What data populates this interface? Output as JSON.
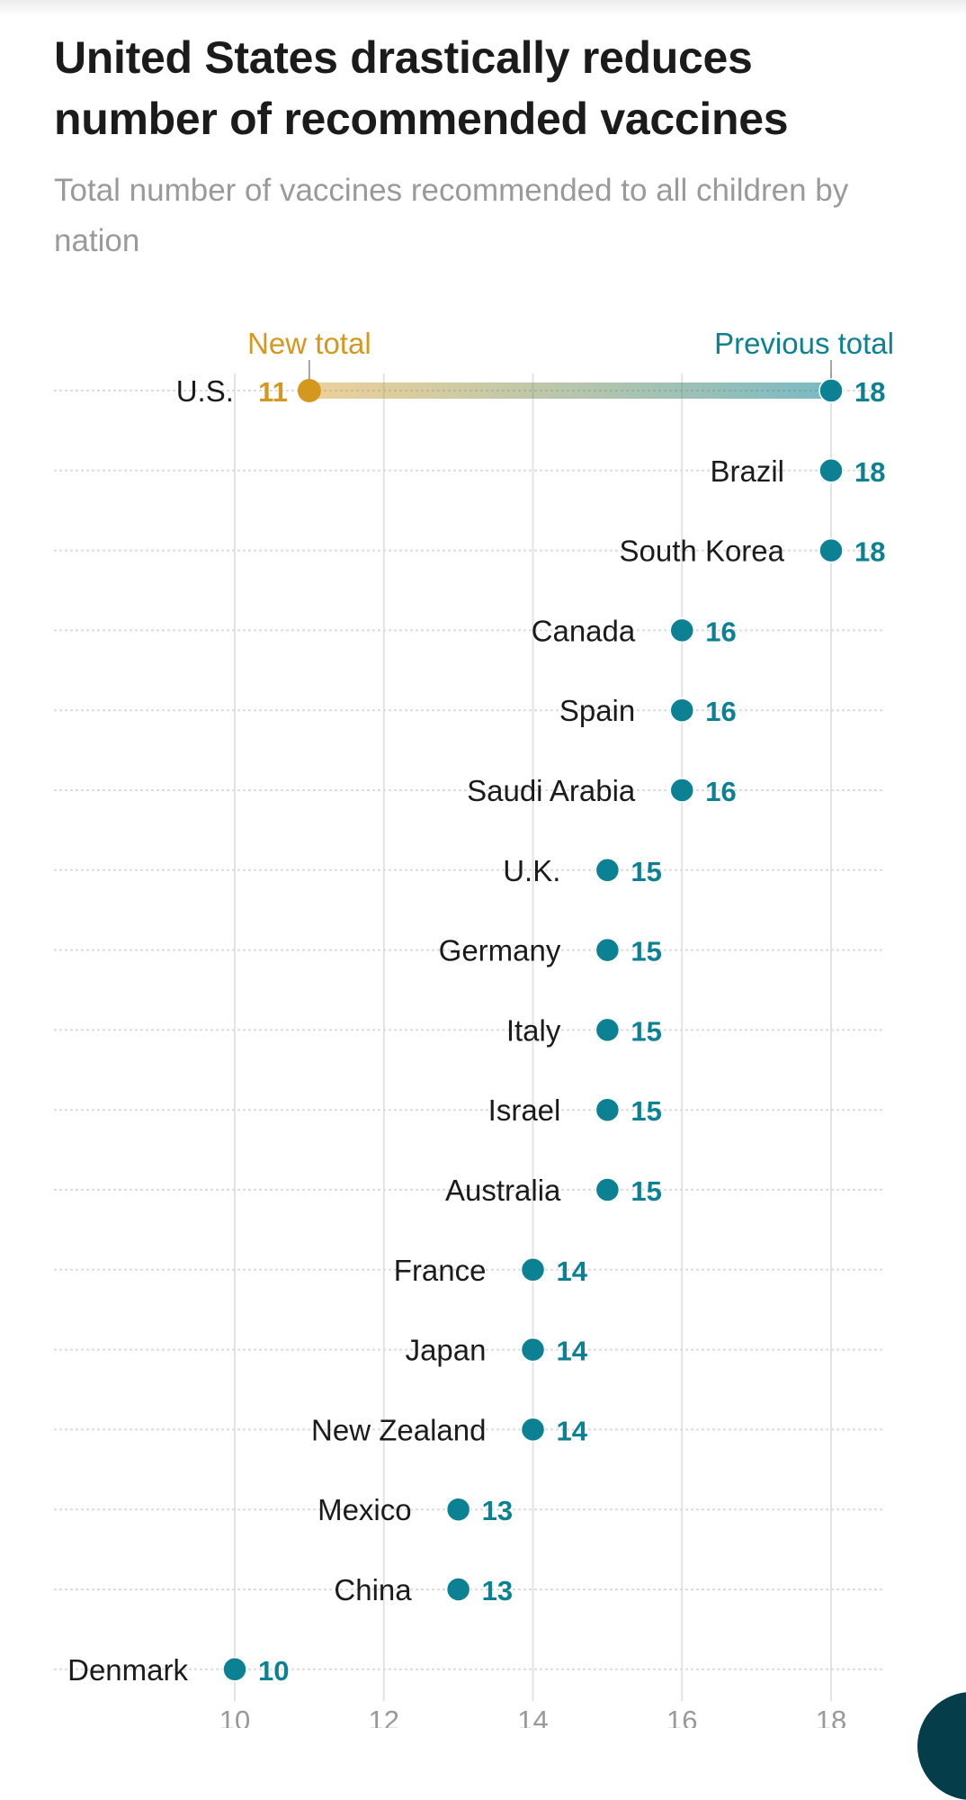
{
  "header": {
    "title": "United States drastically reduces number of recommended vaccines",
    "subtitle": "Total number of vaccines recommended to all children by nation"
  },
  "colors": {
    "new_total": "#d4981f",
    "previous_total": "#0b8193",
    "label_text": "#1b1b1b",
    "gridline": "#e3e3e3",
    "row_dots": "#dcdcdc",
    "axis_tick": "#999999"
  },
  "chart_data": {
    "type": "dot",
    "title": "United States drastically reduces number of recommended vaccines",
    "subtitle": "Total number of vaccines recommended to all children by nation",
    "xlabel": "",
    "ylabel": "",
    "xlim": [
      10,
      18
    ],
    "x_ticks": [
      10,
      12,
      14,
      16,
      18
    ],
    "grid": true,
    "annotations": {
      "new_total_label": "New total",
      "previous_total_label": "Previous total"
    },
    "categories": [
      "U.S.",
      "Brazil",
      "South Korea",
      "Canada",
      "Spain",
      "Saudi Arabia",
      "U.K.",
      "Germany",
      "Italy",
      "Israel",
      "Australia",
      "France",
      "Japan",
      "New Zealand",
      "Mexico",
      "China",
      "Denmark"
    ],
    "series": [
      {
        "name": "Previous total",
        "values": [
          18,
          18,
          18,
          16,
          16,
          16,
          15,
          15,
          15,
          15,
          15,
          14,
          14,
          14,
          13,
          13,
          10
        ]
      },
      {
        "name": "New total",
        "values": [
          11,
          null,
          null,
          null,
          null,
          null,
          null,
          null,
          null,
          null,
          null,
          null,
          null,
          null,
          null,
          null,
          null
        ]
      }
    ]
  }
}
